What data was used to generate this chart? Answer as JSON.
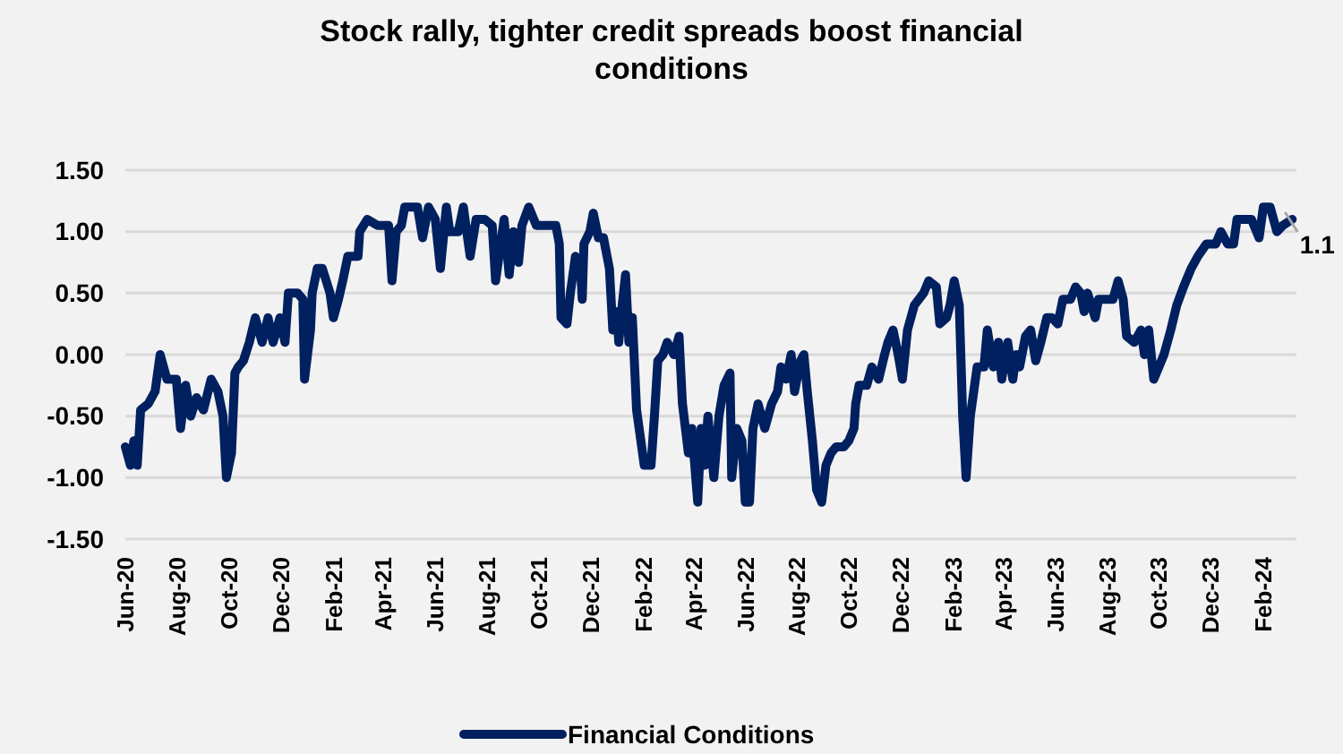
{
  "chart_data": {
    "type": "line",
    "title": "Stock rally, tighter credit spreads boost financial conditions",
    "x": [
      "2020-06-01",
      "2020-06-07",
      "2020-06-11",
      "2020-06-15",
      "2020-06-19",
      "2020-06-28",
      "2020-07-06",
      "2020-07-12",
      "2020-07-20",
      "2020-07-31",
      "2020-08-05",
      "2020-08-11",
      "2020-08-17",
      "2020-08-24",
      "2020-09-01",
      "2020-09-10",
      "2020-09-18",
      "2020-09-24",
      "2020-09-28",
      "2020-10-04",
      "2020-10-08",
      "2020-10-12",
      "2020-10-18",
      "2020-10-25",
      "2020-11-01",
      "2020-11-09",
      "2020-11-16",
      "2020-11-22",
      "2020-11-30",
      "2020-12-06",
      "2020-12-10",
      "2020-12-21",
      "2020-12-27",
      "2020-12-29",
      "2021-01-05",
      "2021-01-07",
      "2021-01-13",
      "2021-01-19",
      "2021-01-28",
      "2021-02-01",
      "2021-02-07",
      "2021-02-12",
      "2021-02-18",
      "2021-02-26",
      "2021-03-02",
      "2021-03-04",
      "2021-03-13",
      "2021-03-25",
      "2021-04-07",
      "2021-04-11",
      "2021-04-16",
      "2021-04-22",
      "2021-04-26",
      "2021-05-11",
      "2021-05-17",
      "2021-05-24",
      "2021-06-01",
      "2021-06-07",
      "2021-06-14",
      "2021-06-18",
      "2021-06-28",
      "2021-07-04",
      "2021-07-12",
      "2021-07-19",
      "2021-07-29",
      "2021-08-07",
      "2021-08-11",
      "2021-08-21",
      "2021-08-27",
      "2021-09-01",
      "2021-09-07",
      "2021-09-11",
      "2021-09-19",
      "2021-09-28",
      "2021-10-11",
      "2021-10-21",
      "2021-10-25",
      "2021-10-27",
      "2021-11-03",
      "2021-11-07",
      "2021-11-13",
      "2021-11-19",
      "2021-11-21",
      "2021-11-23",
      "2021-11-30",
      "2021-12-04",
      "2021-12-10",
      "2021-12-16",
      "2021-12-23",
      "2021-12-27",
      "2022-01-01",
      "2022-01-03",
      "2022-01-07",
      "2022-01-11",
      "2022-01-15",
      "2022-01-19",
      "2022-01-24",
      "2022-02-02",
      "2022-02-10",
      "2022-02-14",
      "2022-02-18",
      "2022-02-24",
      "2022-03-01",
      "2022-03-09",
      "2022-03-15",
      "2022-03-19",
      "2022-03-26",
      "2022-03-30",
      "2022-04-06",
      "2022-04-10",
      "2022-04-14",
      "2022-04-18",
      "2022-04-25",
      "2022-05-01",
      "2022-05-07",
      "2022-05-14",
      "2022-05-16",
      "2022-05-22",
      "2022-05-28",
      "2022-06-01",
      "2022-06-06",
      "2022-06-10",
      "2022-06-16",
      "2022-06-24",
      "2022-07-02",
      "2022-07-09",
      "2022-07-13",
      "2022-07-19",
      "2022-07-25",
      "2022-07-29",
      "2022-08-05",
      "2022-08-09",
      "2022-08-13",
      "2022-08-19",
      "2022-08-24",
      "2022-08-30",
      "2022-09-04",
      "2022-09-10",
      "2022-09-16",
      "2022-09-25",
      "2022-10-01",
      "2022-10-07",
      "2022-10-09",
      "2022-10-13",
      "2022-10-22",
      "2022-10-28",
      "2022-11-05",
      "2022-11-12",
      "2022-11-16",
      "2022-11-22",
      "2022-11-28",
      "2022-12-03",
      "2022-12-09",
      "2022-12-17",
      "2022-12-28",
      "2023-01-03",
      "2023-01-12",
      "2023-01-16",
      "2023-01-24",
      "2023-01-28",
      "2023-02-02",
      "2023-02-08",
      "2023-02-12",
      "2023-02-16",
      "2023-02-21",
      "2023-02-25",
      "2023-03-01",
      "2023-03-09",
      "2023-03-13",
      "2023-03-20",
      "2023-03-26",
      "2023-03-30",
      "2023-04-06",
      "2023-04-12",
      "2023-04-16",
      "2023-04-20",
      "2023-04-27",
      "2023-05-03",
      "2023-05-09",
      "2023-05-15",
      "2023-05-22",
      "2023-05-28",
      "2023-06-04",
      "2023-06-10",
      "2023-06-19",
      "2023-06-25",
      "2023-07-01",
      "2023-07-05",
      "2023-07-09",
      "2023-07-18",
      "2023-07-22",
      "2023-07-30",
      "2023-08-08",
      "2023-08-14",
      "2023-08-20",
      "2023-08-24",
      "2023-09-02",
      "2023-09-10",
      "2023-09-14",
      "2023-09-19",
      "2023-09-25",
      "2023-10-01",
      "2023-10-07",
      "2023-10-15",
      "2023-10-22",
      "2023-10-30",
      "2023-11-08",
      "2023-11-16",
      "2023-11-26",
      "2023-12-07",
      "2023-12-13",
      "2023-12-21",
      "2023-12-28",
      "2024-01-01",
      "2024-01-10",
      "2024-01-18",
      "2024-01-27",
      "2024-02-01",
      "2024-02-09",
      "2024-02-17",
      "2024-02-24",
      "2024-03-06"
    ],
    "series": [
      {
        "name": "Financial Conditions",
        "color": "#002060",
        "values": [
          -0.75,
          -0.9,
          -0.7,
          -0.9,
          -0.45,
          -0.4,
          -0.3,
          0.0,
          -0.2,
          -0.2,
          -0.6,
          -0.25,
          -0.5,
          -0.35,
          -0.45,
          -0.2,
          -0.3,
          -0.5,
          -1.0,
          -0.8,
          -0.15,
          -0.1,
          -0.05,
          0.1,
          0.3,
          0.1,
          0.3,
          0.1,
          0.3,
          0.1,
          0.5,
          0.5,
          0.45,
          -0.2,
          0.2,
          0.5,
          0.7,
          0.7,
          0.5,
          0.3,
          0.45,
          0.6,
          0.8,
          0.8,
          0.8,
          1.0,
          1.1,
          1.05,
          1.05,
          0.6,
          1.0,
          1.05,
          1.2,
          1.2,
          0.95,
          1.2,
          1.1,
          0.7,
          1.2,
          1.0,
          1.0,
          1.2,
          0.8,
          1.1,
          1.1,
          1.05,
          0.6,
          1.1,
          0.65,
          1.0,
          0.75,
          1.05,
          1.2,
          1.05,
          1.05,
          1.05,
          0.9,
          0.3,
          0.25,
          0.5,
          0.8,
          0.7,
          0.45,
          0.9,
          1.0,
          1.15,
          0.95,
          0.95,
          0.7,
          0.2,
          0.35,
          0.1,
          0.4,
          0.65,
          0.1,
          0.3,
          -0.45,
          -0.9,
          -0.9,
          -0.5,
          -0.05,
          0.0,
          0.1,
          0.0,
          0.15,
          -0.4,
          -0.8,
          -0.6,
          -1.2,
          -0.6,
          -0.9,
          -0.5,
          -1.0,
          -0.5,
          -0.25,
          -0.15,
          -1.0,
          -0.6,
          -0.7,
          -1.2,
          -1.2,
          -0.6,
          -0.4,
          -0.6,
          -0.4,
          -0.3,
          -0.1,
          -0.2,
          0.0,
          -0.3,
          -0.05,
          0.0,
          -0.3,
          -0.7,
          -1.1,
          -1.2,
          -0.9,
          -0.8,
          -0.75,
          -0.75,
          -0.7,
          -0.6,
          -0.4,
          -0.25,
          -0.25,
          -0.1,
          -0.2,
          0.0,
          0.1,
          0.2,
          0.0,
          -0.2,
          0.2,
          0.4,
          0.5,
          0.6,
          0.55,
          0.25,
          0.3,
          0.4,
          0.6,
          0.4,
          -0.5,
          -1.0,
          -0.5,
          -0.3,
          -0.1,
          -0.1,
          0.2,
          -0.1,
          0.1,
          -0.2,
          0.1,
          -0.2,
          0.0,
          -0.1,
          0.15,
          0.2,
          -0.05,
          0.1,
          0.3,
          0.3,
          0.25,
          0.45,
          0.45,
          0.55,
          0.5,
          0.35,
          0.5,
          0.3,
          0.45,
          0.45,
          0.45,
          0.6,
          0.45,
          0.15,
          0.1,
          0.2,
          0.0,
          0.2,
          -0.2,
          -0.1,
          0.0,
          0.2,
          0.4,
          0.55,
          0.7,
          0.8,
          0.9,
          0.9,
          1.0,
          0.9,
          0.9,
          1.1,
          1.1,
          1.1,
          0.95,
          1.2,
          1.2,
          1.0,
          1.05,
          1.1
        ]
      }
    ],
    "xlim": [
      "2020-06-01",
      "2024-03-11"
    ],
    "xticks": [
      {
        "value": "2020-06",
        "label": "Jun-20"
      },
      {
        "value": "2020-08",
        "label": "Aug-20"
      },
      {
        "value": "2020-10",
        "label": "Oct-20"
      },
      {
        "value": "2020-12",
        "label": "Dec-20"
      },
      {
        "value": "2021-02",
        "label": "Feb-21"
      },
      {
        "value": "2021-04",
        "label": "Apr-21"
      },
      {
        "value": "2021-06",
        "label": "Jun-21"
      },
      {
        "value": "2021-08",
        "label": "Aug-21"
      },
      {
        "value": "2021-10",
        "label": "Oct-21"
      },
      {
        "value": "2021-12",
        "label": "Dec-21"
      },
      {
        "value": "2022-02",
        "label": "Feb-22"
      },
      {
        "value": "2022-04",
        "label": "Apr-22"
      },
      {
        "value": "2022-06",
        "label": "Jun-22"
      },
      {
        "value": "2022-08",
        "label": "Aug-22"
      },
      {
        "value": "2022-10",
        "label": "Oct-22"
      },
      {
        "value": "2022-12",
        "label": "Dec-22"
      },
      {
        "value": "2023-02",
        "label": "Feb-23"
      },
      {
        "value": "2023-04",
        "label": "Apr-23"
      },
      {
        "value": "2023-06",
        "label": "Jun-23"
      },
      {
        "value": "2023-08",
        "label": "Aug-23"
      },
      {
        "value": "2023-10",
        "label": "Oct-23"
      },
      {
        "value": "2023-12",
        "label": "Dec-23"
      },
      {
        "value": "2024-02",
        "label": "Feb-24"
      }
    ],
    "ylim": [
      -1.5,
      1.5
    ],
    "yticks": [
      {
        "value": -1.5,
        "label": "-1.50"
      },
      {
        "value": -1.0,
        "label": "-1.00"
      },
      {
        "value": -0.5,
        "label": "-0.50"
      },
      {
        "value": 0,
        "label": "0.00"
      },
      {
        "value": 0.5,
        "label": "0.50"
      },
      {
        "value": 1.0,
        "label": "1.00"
      },
      {
        "value": 1.5,
        "label": "1.50"
      }
    ],
    "grid": "y",
    "legend": "bottom",
    "marker": "none",
    "line_style": "solid",
    "annotations": [
      {
        "text": "1.1",
        "x": "2024-03-06",
        "y": 1.1
      }
    ]
  }
}
